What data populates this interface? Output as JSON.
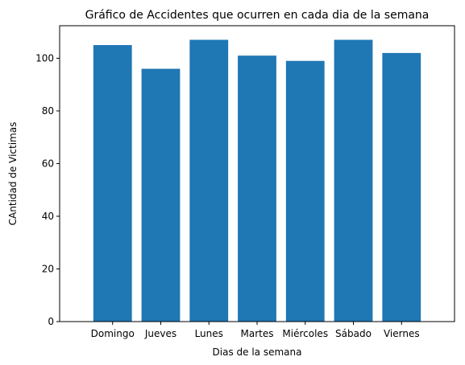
{
  "chart_data": {
    "type": "bar",
    "title": "Gráfico de Accidentes que ocurren en cada dia de la semana",
    "xlabel": "Dias de la semana",
    "ylabel": "CAntidad de Victimas",
    "categories": [
      "Domingo",
      "Jueves",
      "Lunes",
      "Martes",
      "Miércoles",
      "Sábado",
      "Viernes"
    ],
    "values": [
      105,
      96,
      107,
      101,
      99,
      107,
      102
    ],
    "ylim": [
      0,
      112.35
    ],
    "yticks": [
      0,
      20,
      40,
      60,
      80,
      100
    ],
    "bar_color": "#1f77b4",
    "grid": false,
    "legend": false
  }
}
